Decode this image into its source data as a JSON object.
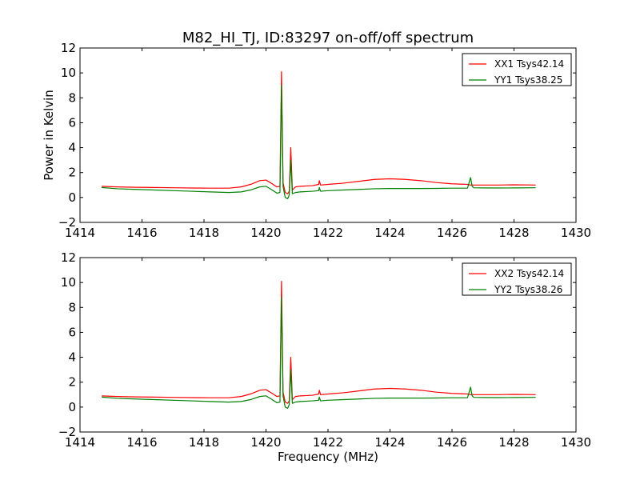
{
  "chart_data": {
    "title": "M82_HI_TJ, ID:83297 on-off/off spectrum",
    "xlabel": "Frequency (MHz)",
    "ylabel": "Power in Kelvin",
    "colors": {
      "XX": "#ff0000",
      "YY": "#008000"
    },
    "legend_position": "top-right",
    "panels": [
      {
        "type": "line",
        "xlim": [
          1414,
          1430
        ],
        "ylim": [
          -2,
          12
        ],
        "xticks": [
          1414,
          1416,
          1418,
          1420,
          1422,
          1424,
          1426,
          1428,
          1430
        ],
        "yticks": [
          -2,
          0,
          2,
          4,
          6,
          8,
          10,
          12
        ],
        "show_xlabel": false,
        "show_ylabel": true,
        "series": [
          {
            "name": "XX1 Tsys42.14",
            "color": "#ff0000",
            "x": [
              1414.7,
              1415.2,
              1415.8,
              1416.4,
              1417.0,
              1417.6,
              1418.2,
              1418.8,
              1419.2,
              1419.5,
              1419.8,
              1420.0,
              1420.2,
              1420.35,
              1420.45,
              1420.5,
              1420.55,
              1420.62,
              1420.7,
              1420.75,
              1420.8,
              1420.85,
              1420.95,
              1421.1,
              1421.5,
              1421.7,
              1421.72,
              1421.76,
              1422.0,
              1422.5,
              1423.0,
              1423.5,
              1424.0,
              1424.5,
              1425.0,
              1425.5,
              1426.0,
              1426.5,
              1426.6,
              1426.65,
              1426.7,
              1427.0,
              1427.5,
              1428.0,
              1428.7
            ],
            "y": [
              0.9,
              0.85,
              0.82,
              0.8,
              0.78,
              0.76,
              0.75,
              0.75,
              0.85,
              1.05,
              1.35,
              1.4,
              1.1,
              0.85,
              0.9,
              10.1,
              1.2,
              0.4,
              0.3,
              0.5,
              4.0,
              0.6,
              0.85,
              0.9,
              0.95,
              1.05,
              1.35,
              1.0,
              1.05,
              1.15,
              1.3,
              1.45,
              1.5,
              1.45,
              1.35,
              1.2,
              1.1,
              1.05,
              1.0,
              1.0,
              1.0,
              1.0,
              1.0,
              1.02,
              1.0
            ]
          },
          {
            "name": "YY1 Tsys38.25",
            "color": "#008000",
            "x": [
              1414.7,
              1415.2,
              1415.8,
              1416.4,
              1417.0,
              1417.6,
              1418.2,
              1418.8,
              1419.2,
              1419.5,
              1419.8,
              1420.0,
              1420.2,
              1420.35,
              1420.45,
              1420.5,
              1420.55,
              1420.62,
              1420.7,
              1420.75,
              1420.8,
              1420.85,
              1420.95,
              1421.1,
              1421.5,
              1421.7,
              1421.72,
              1421.76,
              1422.0,
              1422.5,
              1423.0,
              1423.5,
              1424.0,
              1424.5,
              1425.0,
              1425.5,
              1426.0,
              1426.5,
              1426.6,
              1426.65,
              1426.7,
              1427.0,
              1427.5,
              1428.0,
              1428.7
            ],
            "y": [
              0.8,
              0.7,
              0.65,
              0.6,
              0.55,
              0.5,
              0.45,
              0.4,
              0.45,
              0.6,
              0.85,
              0.9,
              0.6,
              0.35,
              0.4,
              9.0,
              0.9,
              0.0,
              -0.1,
              0.2,
              3.0,
              0.3,
              0.4,
              0.45,
              0.5,
              0.55,
              0.8,
              0.5,
              0.55,
              0.6,
              0.65,
              0.7,
              0.72,
              0.72,
              0.72,
              0.73,
              0.75,
              0.75,
              1.6,
              0.9,
              0.78,
              0.77,
              0.76,
              0.77,
              0.78
            ]
          }
        ]
      },
      {
        "type": "line",
        "xlim": [
          1414,
          1430
        ],
        "ylim": [
          -2,
          12
        ],
        "xticks": [
          1414,
          1416,
          1418,
          1420,
          1422,
          1424,
          1426,
          1428,
          1430
        ],
        "yticks": [
          -2,
          0,
          2,
          4,
          6,
          8,
          10,
          12
        ],
        "show_xlabel": true,
        "show_ylabel": false,
        "series": [
          {
            "name": "XX2 Tsys42.14",
            "color": "#ff0000",
            "x": [
              1414.7,
              1415.2,
              1415.8,
              1416.4,
              1417.0,
              1417.6,
              1418.2,
              1418.8,
              1419.2,
              1419.5,
              1419.8,
              1420.0,
              1420.2,
              1420.35,
              1420.45,
              1420.5,
              1420.55,
              1420.62,
              1420.7,
              1420.75,
              1420.8,
              1420.85,
              1420.95,
              1421.1,
              1421.5,
              1421.7,
              1421.72,
              1421.76,
              1422.0,
              1422.5,
              1423.0,
              1423.5,
              1424.0,
              1424.5,
              1425.0,
              1425.5,
              1426.0,
              1426.5,
              1426.6,
              1426.65,
              1426.7,
              1427.0,
              1427.5,
              1428.0,
              1428.7
            ],
            "y": [
              0.9,
              0.85,
              0.82,
              0.8,
              0.78,
              0.76,
              0.75,
              0.75,
              0.85,
              1.05,
              1.35,
              1.4,
              1.1,
              0.85,
              0.9,
              10.1,
              1.2,
              0.4,
              0.3,
              0.5,
              4.0,
              0.6,
              0.85,
              0.9,
              0.95,
              1.05,
              1.35,
              1.0,
              1.05,
              1.15,
              1.3,
              1.45,
              1.5,
              1.45,
              1.35,
              1.2,
              1.1,
              1.05,
              1.0,
              1.0,
              1.0,
              1.0,
              1.0,
              1.02,
              1.0
            ]
          },
          {
            "name": "YY2 Tsys38.26",
            "color": "#008000",
            "x": [
              1414.7,
              1415.2,
              1415.8,
              1416.4,
              1417.0,
              1417.6,
              1418.2,
              1418.8,
              1419.2,
              1419.5,
              1419.8,
              1420.0,
              1420.2,
              1420.35,
              1420.45,
              1420.5,
              1420.55,
              1420.62,
              1420.7,
              1420.75,
              1420.8,
              1420.85,
              1420.95,
              1421.1,
              1421.5,
              1421.7,
              1421.72,
              1421.76,
              1422.0,
              1422.5,
              1423.0,
              1423.5,
              1424.0,
              1424.5,
              1425.0,
              1425.5,
              1426.0,
              1426.5,
              1426.6,
              1426.65,
              1426.7,
              1427.0,
              1427.5,
              1428.0,
              1428.7
            ],
            "y": [
              0.8,
              0.7,
              0.65,
              0.6,
              0.55,
              0.5,
              0.45,
              0.4,
              0.45,
              0.6,
              0.85,
              0.9,
              0.6,
              0.35,
              0.4,
              8.8,
              0.9,
              0.0,
              -0.1,
              0.2,
              3.0,
              0.3,
              0.4,
              0.45,
              0.5,
              0.55,
              0.8,
              0.5,
              0.55,
              0.6,
              0.65,
              0.7,
              0.72,
              0.72,
              0.72,
              0.73,
              0.75,
              0.75,
              1.6,
              0.9,
              0.78,
              0.77,
              0.76,
              0.77,
              0.78
            ]
          }
        ]
      }
    ]
  }
}
